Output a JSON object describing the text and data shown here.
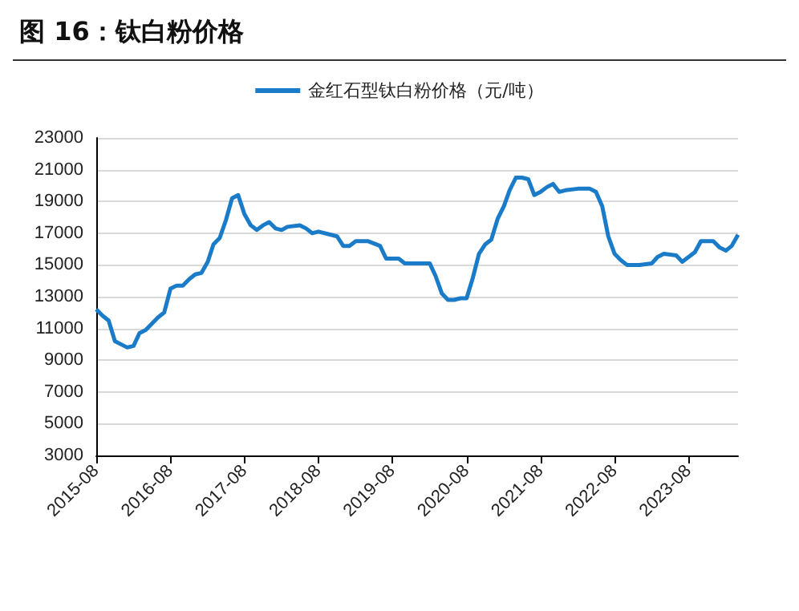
{
  "chart_data": {
    "type": "line",
    "title": "图 16：钛白粉价格",
    "x": [
      "2015-08",
      "2015-09",
      "2015-10",
      "2015-11",
      "2015-12",
      "2016-01",
      "2016-02",
      "2016-03",
      "2016-04",
      "2016-05",
      "2016-06",
      "2016-07",
      "2016-08",
      "2016-09",
      "2016-10",
      "2016-11",
      "2016-12",
      "2017-01",
      "2017-02",
      "2017-03",
      "2017-04",
      "2017-05",
      "2017-06",
      "2017-07",
      "2017-08",
      "2017-09",
      "2017-10",
      "2017-11",
      "2017-12",
      "2018-01",
      "2018-02",
      "2018-03",
      "2018-05",
      "2018-06",
      "2018-07",
      "2018-08",
      "2018-10",
      "2018-11",
      "2018-12",
      "2019-01",
      "2019-02",
      "2019-04",
      "2019-06",
      "2019-07",
      "2019-08",
      "2019-09",
      "2019-10",
      "2019-12",
      "2020-02",
      "2020-03",
      "2020-04",
      "2020-05",
      "2020-06",
      "2020-07",
      "2020-08",
      "2020-09",
      "2020-10",
      "2020-11",
      "2020-12",
      "2021-01",
      "2021-02",
      "2021-03",
      "2021-04",
      "2021-05",
      "2021-06",
      "2021-07",
      "2021-08",
      "2021-09",
      "2021-10",
      "2021-11",
      "2021-12",
      "2022-02",
      "2022-04",
      "2022-05",
      "2022-06",
      "2022-07",
      "2022-08",
      "2022-09",
      "2022-10",
      "2022-12",
      "2023-02",
      "2023-03",
      "2023-04",
      "2023-06",
      "2023-07",
      "2023-08",
      "2023-09",
      "2023-10",
      "2023-12",
      "2024-01",
      "2024-02",
      "2024-03",
      "2024-04"
    ],
    "series": [
      {
        "name": "金红石型钛白粉价格（元/吨）",
        "color": "#1a7bc8",
        "values": [
          12200,
          11800,
          11500,
          10200,
          10000,
          9800,
          9900,
          10700,
          10900,
          11300,
          11700,
          12000,
          13500,
          13700,
          13700,
          14100,
          14400,
          14500,
          15200,
          16300,
          16700,
          17800,
          19200,
          19400,
          18200,
          17500,
          17200,
          17500,
          17700,
          17300,
          17200,
          17400,
          17500,
          17300,
          17000,
          17100,
          16900,
          16800,
          16200,
          16200,
          16500,
          16500,
          16200,
          15400,
          15400,
          15400,
          15100,
          15100,
          15100,
          14300,
          13200,
          12800,
          12800,
          12900,
          12900,
          14200,
          15700,
          16300,
          16600,
          17900,
          18700,
          19700,
          20500,
          20500,
          20400,
          19400,
          19600,
          19900,
          20100,
          19600,
          19700,
          19800,
          19800,
          19600,
          18700,
          16800,
          15700,
          15300,
          15000,
          15000,
          15100,
          15500,
          15700,
          15600,
          15200,
          15500,
          15800,
          16500,
          16500,
          16100,
          15900,
          16200,
          16900
        ]
      }
    ],
    "xlim": [
      "2015-08",
      "2024-04"
    ],
    "xticks": [
      "2015-08",
      "2016-08",
      "2017-08",
      "2018-08",
      "2019-08",
      "2020-08",
      "2021-08",
      "2022-08",
      "2023-08"
    ],
    "ylim": [
      3000,
      23000
    ],
    "yticks": [
      3000,
      5000,
      7000,
      9000,
      11000,
      13000,
      15000,
      17000,
      19000,
      21000,
      23000
    ],
    "grid": "y",
    "legend": "top",
    "marker": "none",
    "line_style": "solid"
  }
}
